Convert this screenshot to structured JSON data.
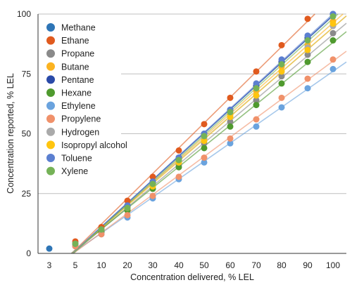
{
  "chart_data": {
    "type": "scatter",
    "xlabel": "Concentration delivered, % LEL",
    "ylabel": "Concentration reported, % LEL",
    "categories": [
      "3",
      "5",
      "10",
      "20",
      "30",
      "40",
      "50",
      "60",
      "70",
      "80",
      "90",
      "100"
    ],
    "y_ticks": [
      0,
      25,
      50,
      75,
      100
    ],
    "ylim": [
      0,
      100
    ],
    "grid": "horizontal",
    "legend_position": "top-left",
    "trend_lines": true,
    "series": [
      {
        "name": "Methane",
        "color": "#2e75b6",
        "values": [
          2,
          4,
          10,
          20,
          30,
          40,
          50,
          60,
          70,
          80,
          90,
          100
        ]
      },
      {
        "name": "Ethane",
        "color": "#e05a1e",
        "values": [
          null,
          5,
          11,
          22,
          32,
          43,
          54,
          65,
          76,
          87,
          98,
          null
        ]
      },
      {
        "name": "Propane",
        "color": "#8a8a8a",
        "values": [
          null,
          4,
          9,
          18,
          27,
          37,
          46,
          55,
          64,
          74,
          83,
          92
        ]
      },
      {
        "name": "Butane",
        "color": "#fbb321",
        "values": [
          null,
          4,
          10,
          19,
          29,
          39,
          48,
          58,
          68,
          78,
          87,
          97
        ]
      },
      {
        "name": "Pentane",
        "color": "#2a4aa8",
        "values": [
          null,
          4,
          10,
          20,
          30,
          40,
          50,
          60,
          70,
          80,
          90,
          100
        ]
      },
      {
        "name": "Hexane",
        "color": "#4f9a2e",
        "values": [
          null,
          4,
          9,
          18,
          27,
          36,
          44,
          53,
          62,
          71,
          80,
          89
        ]
      },
      {
        "name": "Ethylene",
        "color": "#6aa3de",
        "values": [
          null,
          3,
          8,
          15,
          23,
          31,
          38,
          46,
          53,
          61,
          69,
          77
        ]
      },
      {
        "name": "Propylene",
        "color": "#f0916a",
        "values": [
          null,
          3,
          8,
          16,
          24,
          32,
          40,
          48,
          56,
          65,
          73,
          81
        ]
      },
      {
        "name": "Hydrogen",
        "color": "#aaaaaa",
        "values": [
          null,
          4,
          10,
          19,
          29,
          38,
          48,
          57,
          66,
          76,
          86,
          95
        ]
      },
      {
        "name": "Isopropyl alcohol",
        "color": "#ffc50f",
        "values": [
          null,
          4,
          10,
          19,
          28,
          38,
          47,
          57,
          66,
          76,
          85,
          96
        ]
      },
      {
        "name": "Toluene",
        "color": "#5b7fd0",
        "values": [
          null,
          4,
          10,
          20,
          30,
          40,
          50,
          60,
          71,
          81,
          91,
          100
        ]
      },
      {
        "name": "Xylene",
        "color": "#75b257",
        "values": [
          null,
          4,
          10,
          19,
          29,
          39,
          49,
          59,
          69,
          79,
          89,
          99
        ]
      }
    ]
  }
}
